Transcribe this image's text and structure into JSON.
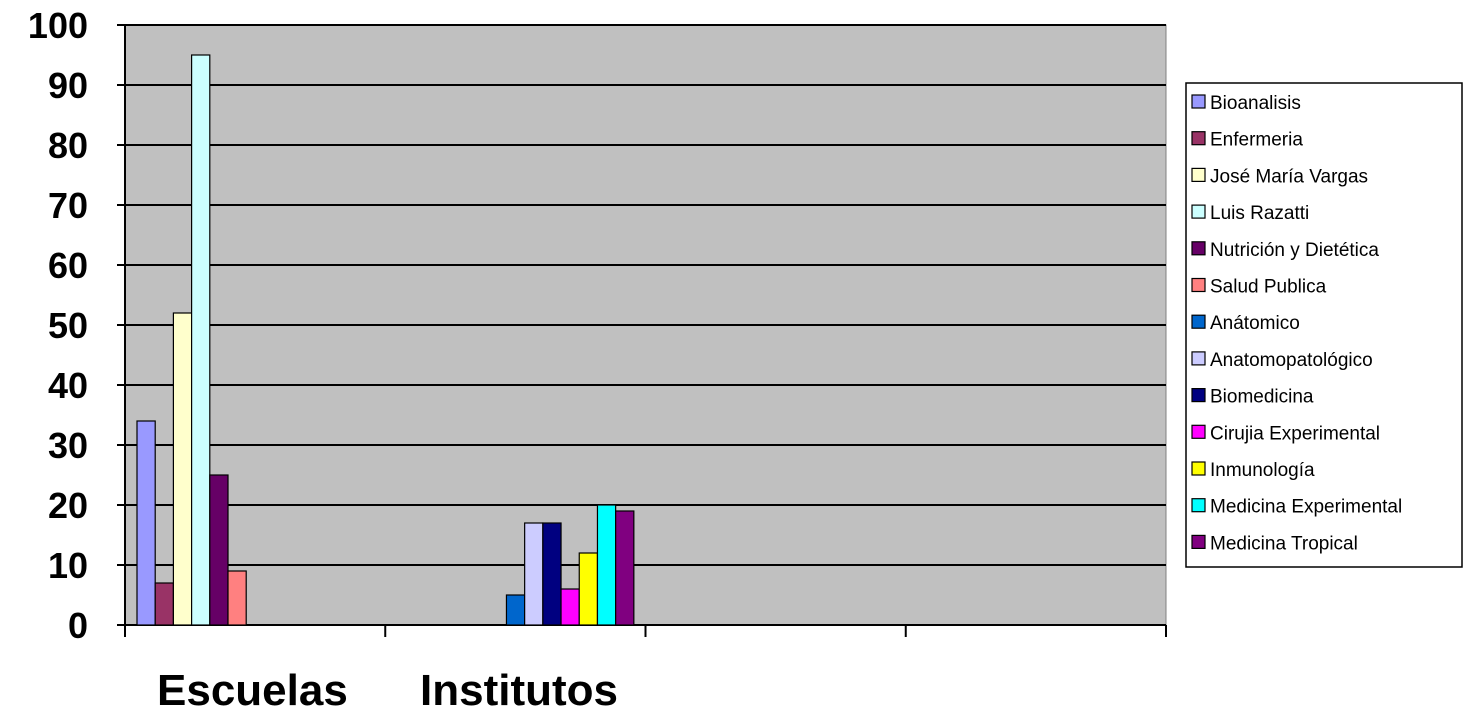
{
  "chart_data": {
    "type": "bar",
    "title": "",
    "xlabel": "",
    "ylabel": "",
    "ylim": [
      0,
      100
    ],
    "yticks": [
      "0",
      "10",
      "20",
      "30",
      "40",
      "50",
      "60",
      "70",
      "80",
      "90",
      "100"
    ],
    "grid": true,
    "legend_position": "right",
    "plot_background": "#c0c0c0",
    "category_labels": [
      "Escuelas",
      "Institutos"
    ],
    "series": [
      {
        "name": "Bioanalisis",
        "color": "#9999ff",
        "values": [
          34,
          null
        ]
      },
      {
        "name": "Enfermeria",
        "color": "#993366",
        "values": [
          7,
          null
        ]
      },
      {
        "name": "José María Vargas",
        "color": "#ffffcc",
        "values": [
          52,
          null
        ]
      },
      {
        "name": "Luis Razatti",
        "color": "#ccffff",
        "values": [
          95,
          null
        ]
      },
      {
        "name": "Nutrición y Dietética",
        "color": "#660066",
        "values": [
          25,
          null
        ]
      },
      {
        "name": "Salud Publica",
        "color": "#ff8080",
        "values": [
          9,
          null
        ]
      },
      {
        "name": "Anátomico",
        "color": "#0066cc",
        "values": [
          null,
          5
        ]
      },
      {
        "name": "Anatomopatológico",
        "color": "#ccccff",
        "values": [
          null,
          17
        ]
      },
      {
        "name": "Biomedicina",
        "color": "#000080",
        "values": [
          null,
          17
        ]
      },
      {
        "name": "Cirujia Experimental",
        "color": "#ff00ff",
        "values": [
          null,
          6
        ]
      },
      {
        "name": "Inmunología",
        "color": "#ffff00",
        "values": [
          null,
          12
        ]
      },
      {
        "name": "Medicina Experimental",
        "color": "#00ffff",
        "values": [
          null,
          20
        ]
      },
      {
        "name": "Medicina Tropical",
        "color": "#800080",
        "values": [
          null,
          19
        ]
      }
    ]
  }
}
